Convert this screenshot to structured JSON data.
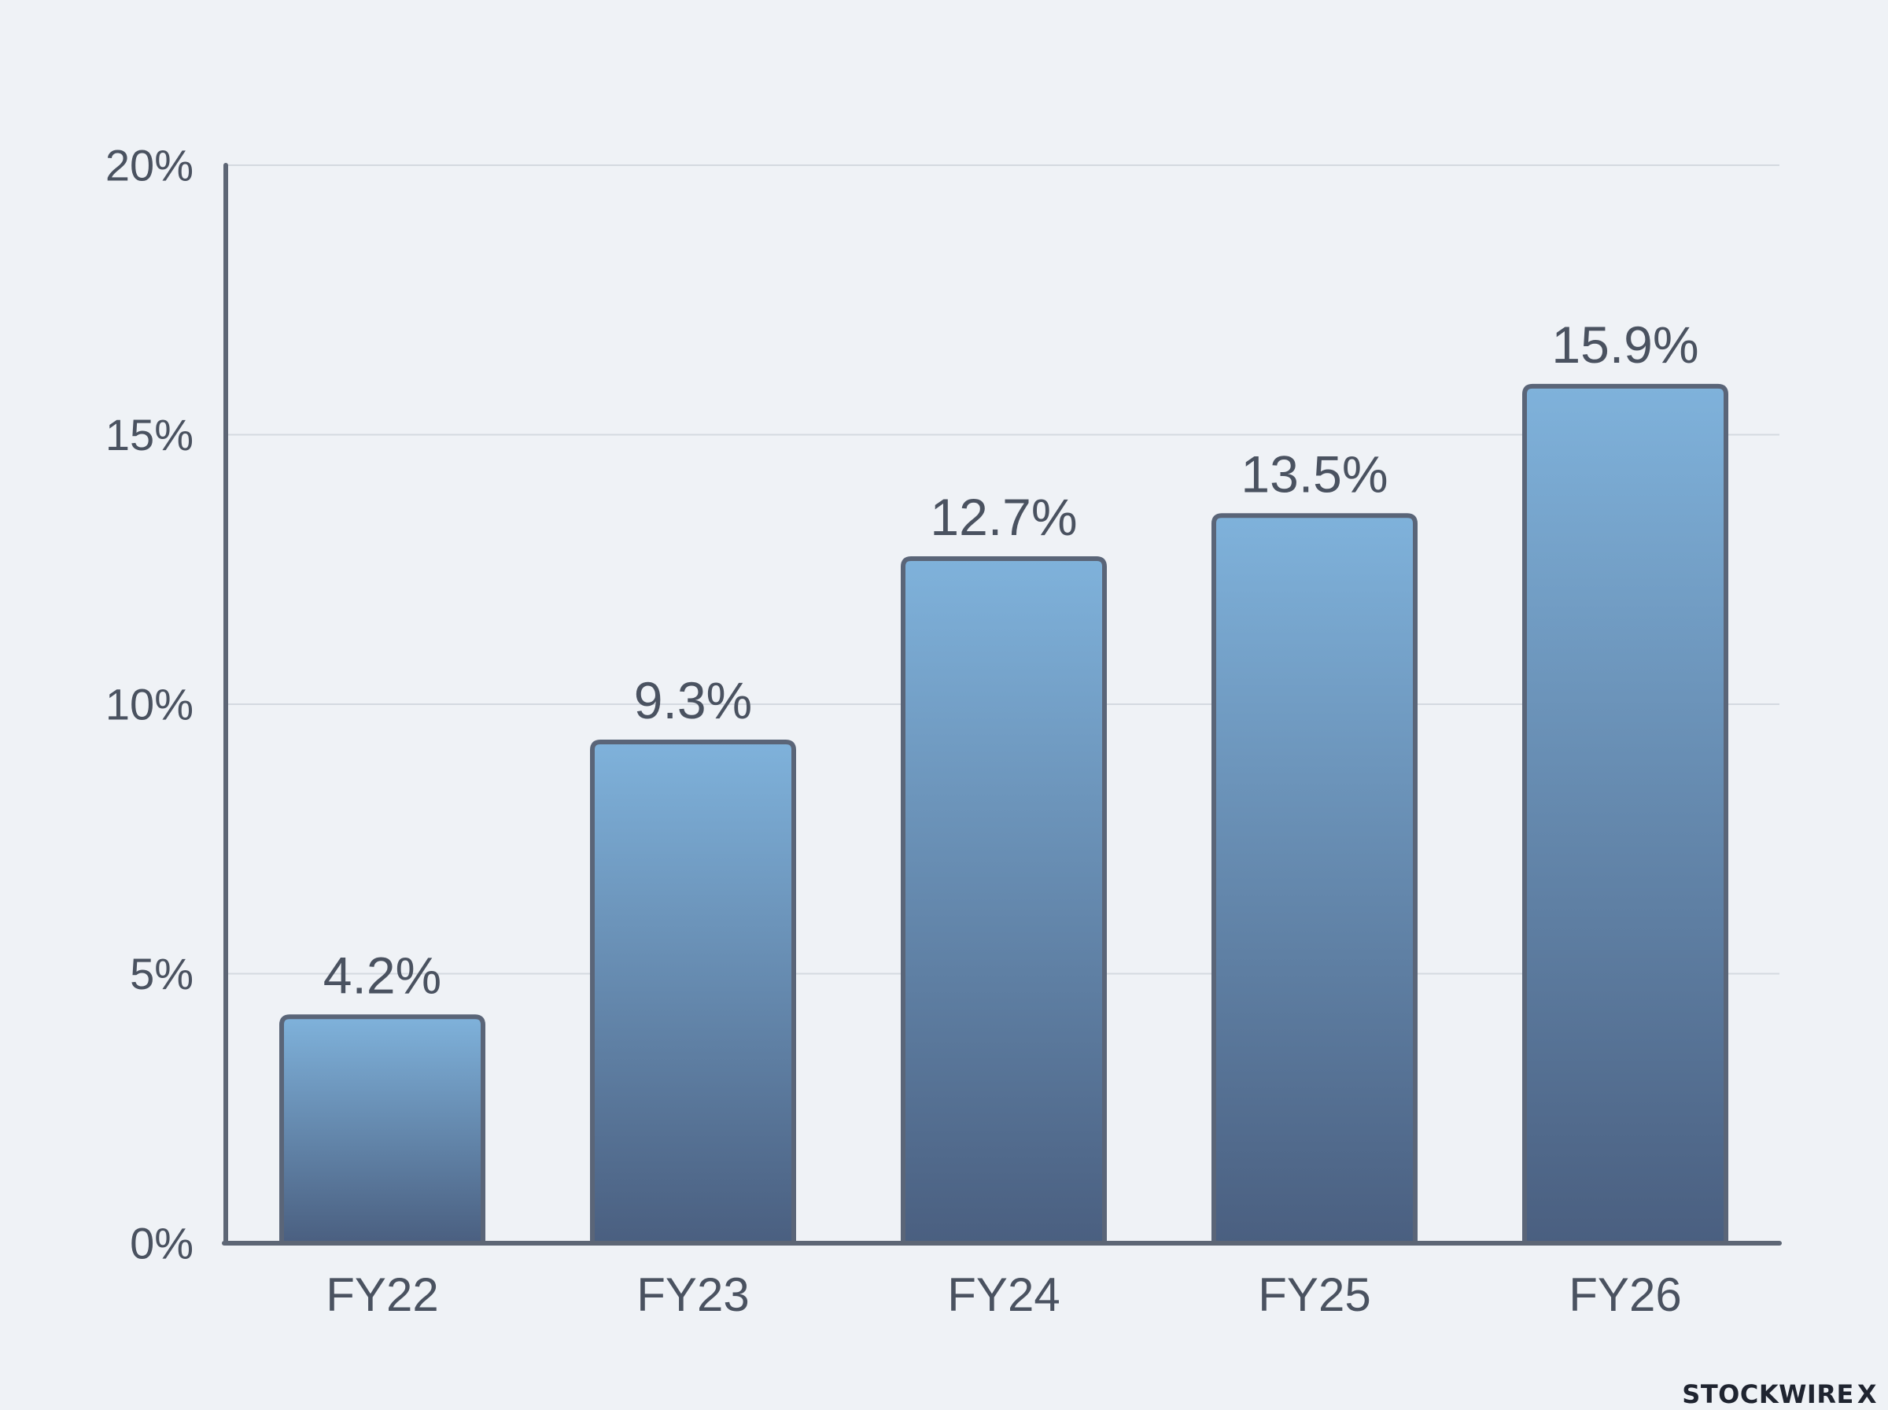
{
  "chart_data": {
    "type": "bar",
    "categories": [
      "FY22",
      "FY23",
      "FY24",
      "FY25",
      "FY26"
    ],
    "values": [
      4.2,
      9.3,
      12.7,
      13.5,
      15.9
    ],
    "data_labels": [
      "4.2%",
      "9.3%",
      "12.7%",
      "13.5%",
      "15.9%"
    ],
    "title": "",
    "xlabel": "",
    "ylabel": "",
    "ylim": [
      0,
      20
    ],
    "yticks": [
      0,
      5,
      10,
      15,
      20
    ],
    "ytick_labels": [
      "0%",
      "5%",
      "10%",
      "15%",
      "20%"
    ],
    "grid": true,
    "legend": "none",
    "colors": {
      "bar_top": "#7fb2db",
      "bar_bottom": "#4a5f80",
      "bar_outline": "#5a6578",
      "axis": "#5d6675",
      "grid": "#d4d9e0",
      "text": "#4a5260",
      "background": "#eff2f6"
    }
  },
  "brand": {
    "name": "STOCKWIRE",
    "mark": "X"
  }
}
